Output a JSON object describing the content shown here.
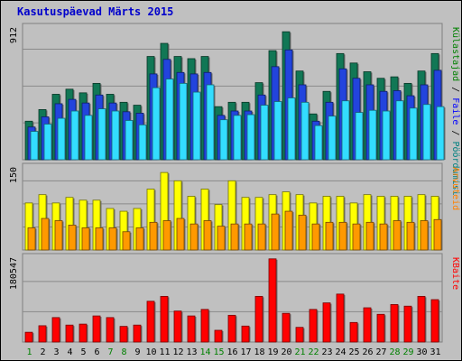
{
  "chart_data": {
    "type": "bar",
    "title": "Kasutuspäevad Märts 2015",
    "colors": {
      "weekend_tick": "#008000",
      "weekday_tick": "#000000",
      "title": "#0000cc",
      "grid": "#808080"
    },
    "x": [
      "1",
      "2",
      "3",
      "4",
      "5",
      "6",
      "7",
      "8",
      "9",
      "10",
      "11",
      "12",
      "13",
      "14",
      "15",
      "16",
      "17",
      "18",
      "19",
      "20",
      "21",
      "22",
      "23",
      "24",
      "25",
      "26",
      "27",
      "28",
      "29",
      "30",
      "31"
    ],
    "weekend_days": [
      "1",
      "7",
      "8",
      "14",
      "15",
      "21",
      "22",
      "28",
      "29"
    ],
    "panels": [
      {
        "ytick": "912",
        "ymax": 912,
        "legend": [
          {
            "text": "Külastajad",
            "color": "#008000"
          },
          {
            "text": " / ",
            "color": "#000000"
          },
          {
            "text": "Faile",
            "color": "#0000ff"
          },
          {
            "text": " / ",
            "color": "#000000"
          },
          {
            "text": "Pöördumisi",
            "color": "#008080"
          }
        ],
        "series": [
          {
            "color": "#117755",
            "values": [
              265,
              345,
              450,
              485,
              460,
              525,
              450,
              395,
              375,
              710,
              800,
              710,
              695,
              710,
              365,
              395,
              395,
              530,
              750,
              880,
              610,
              315,
              470,
              730,
              665,
              605,
              560,
              570,
              525,
              610,
              730
            ]
          },
          {
            "color": "#2244dd",
            "values": [
              225,
              295,
              385,
              415,
              390,
              445,
              390,
              330,
              320,
              590,
              690,
              600,
              590,
              600,
              305,
              335,
              335,
              445,
              640,
              755,
              515,
              265,
              395,
              625,
              560,
              515,
              470,
              475,
              440,
              515,
              615
            ]
          },
          {
            "color": "#33ddff",
            "values": [
              195,
              245,
              285,
              335,
              305,
              350,
              335,
              270,
              240,
              495,
              555,
              525,
              465,
              515,
              275,
              305,
              310,
              375,
              400,
              425,
              395,
              235,
              300,
              405,
              325,
              340,
              335,
              405,
              355,
              380,
              365
            ]
          }
        ]
      },
      {
        "ytick": "150",
        "ymax": 150,
        "legend": [
          {
            "text": "Arvuteid",
            "color": "#ff8000"
          }
        ],
        "series": [
          {
            "color": "#ffff00",
            "values": [
              85,
              100,
              85,
              95,
              90,
              90,
              75,
              70,
              75,
              110,
              140,
              125,
              97,
              110,
              82,
              125,
              95,
              95,
              100,
              105,
              100,
              85,
              97,
              97,
              85,
              100,
              97,
              97,
              97,
              100,
              97
            ]
          },
          {
            "color": "#ff9900",
            "values": [
              40,
              57,
              53,
              45,
              40,
              40,
              40,
              33,
              40,
              50,
              53,
              57,
              47,
              53,
              43,
              47,
              47,
              47,
              65,
              70,
              63,
              47,
              50,
              50,
              47,
              50,
              47,
              53,
              50,
              53,
              55
            ]
          }
        ]
      },
      {
        "ytick": "180547",
        "ymax": 260000,
        "legend": [
          {
            "text": "KBaite",
            "color": "#ff0000"
          }
        ],
        "series": [
          {
            "color": "#ff0000",
            "values": [
              30000,
              50000,
              75000,
              52000,
              55000,
              80000,
              75000,
              48000,
              52000,
              125000,
              140000,
              95000,
              80000,
              100000,
              36000,
              82000,
              49000,
              140000,
              255000,
              88000,
              45000,
              100000,
              120000,
              147000,
              60000,
              105000,
              85000,
              115000,
              110000,
              140000,
              130000
            ]
          }
        ]
      }
    ]
  }
}
